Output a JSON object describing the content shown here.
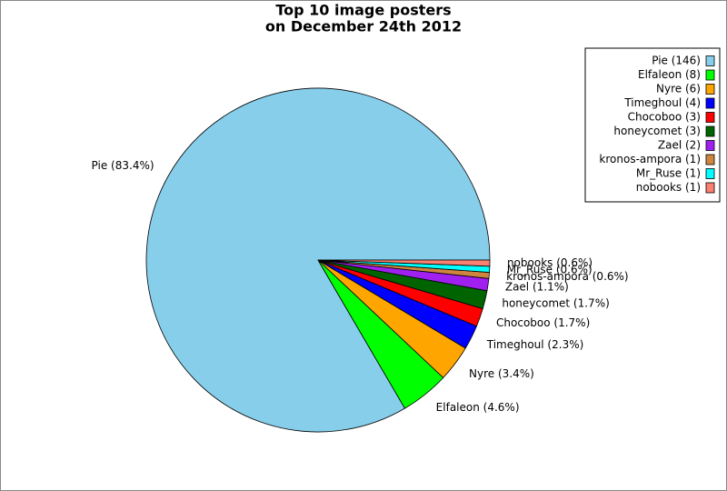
{
  "chart_data": {
    "type": "pie",
    "title": [
      "Top 10 image posters",
      "on December 24th 2012"
    ],
    "legend_labels": [
      "Pie (146)",
      "Elfaleon (8)",
      "Nyre (6)",
      "Timeghoul (4)",
      "Chocoboo (3)",
      "honeycomet (3)",
      "Zael (2)",
      "kronos-ampora (1)",
      "Mr_Ruse (1)",
      "nobooks (1)"
    ],
    "slice_labels": [
      "Pie (83.4%)",
      "Elfaleon (4.6%)",
      "Nyre (3.4%)",
      "Timeghoul (2.3%)",
      "Chocoboo (1.7%)",
      "honeycomet (1.7%)",
      "Zael (1.1%)",
      "kronos-ampora (0.6%)",
      "Mr_Ruse (0.6%)",
      "nobooks (0.6%)"
    ],
    "values": [
      146,
      8,
      6,
      4,
      3,
      3,
      2,
      1,
      1,
      1
    ],
    "colors": [
      "#87ceeb",
      "#00ff00",
      "#ffa500",
      "#0000ff",
      "#ff0000",
      "#006400",
      "#a020f0",
      "#cd853f",
      "#00ffff",
      "#fa8072"
    ],
    "legend": "upper right"
  }
}
